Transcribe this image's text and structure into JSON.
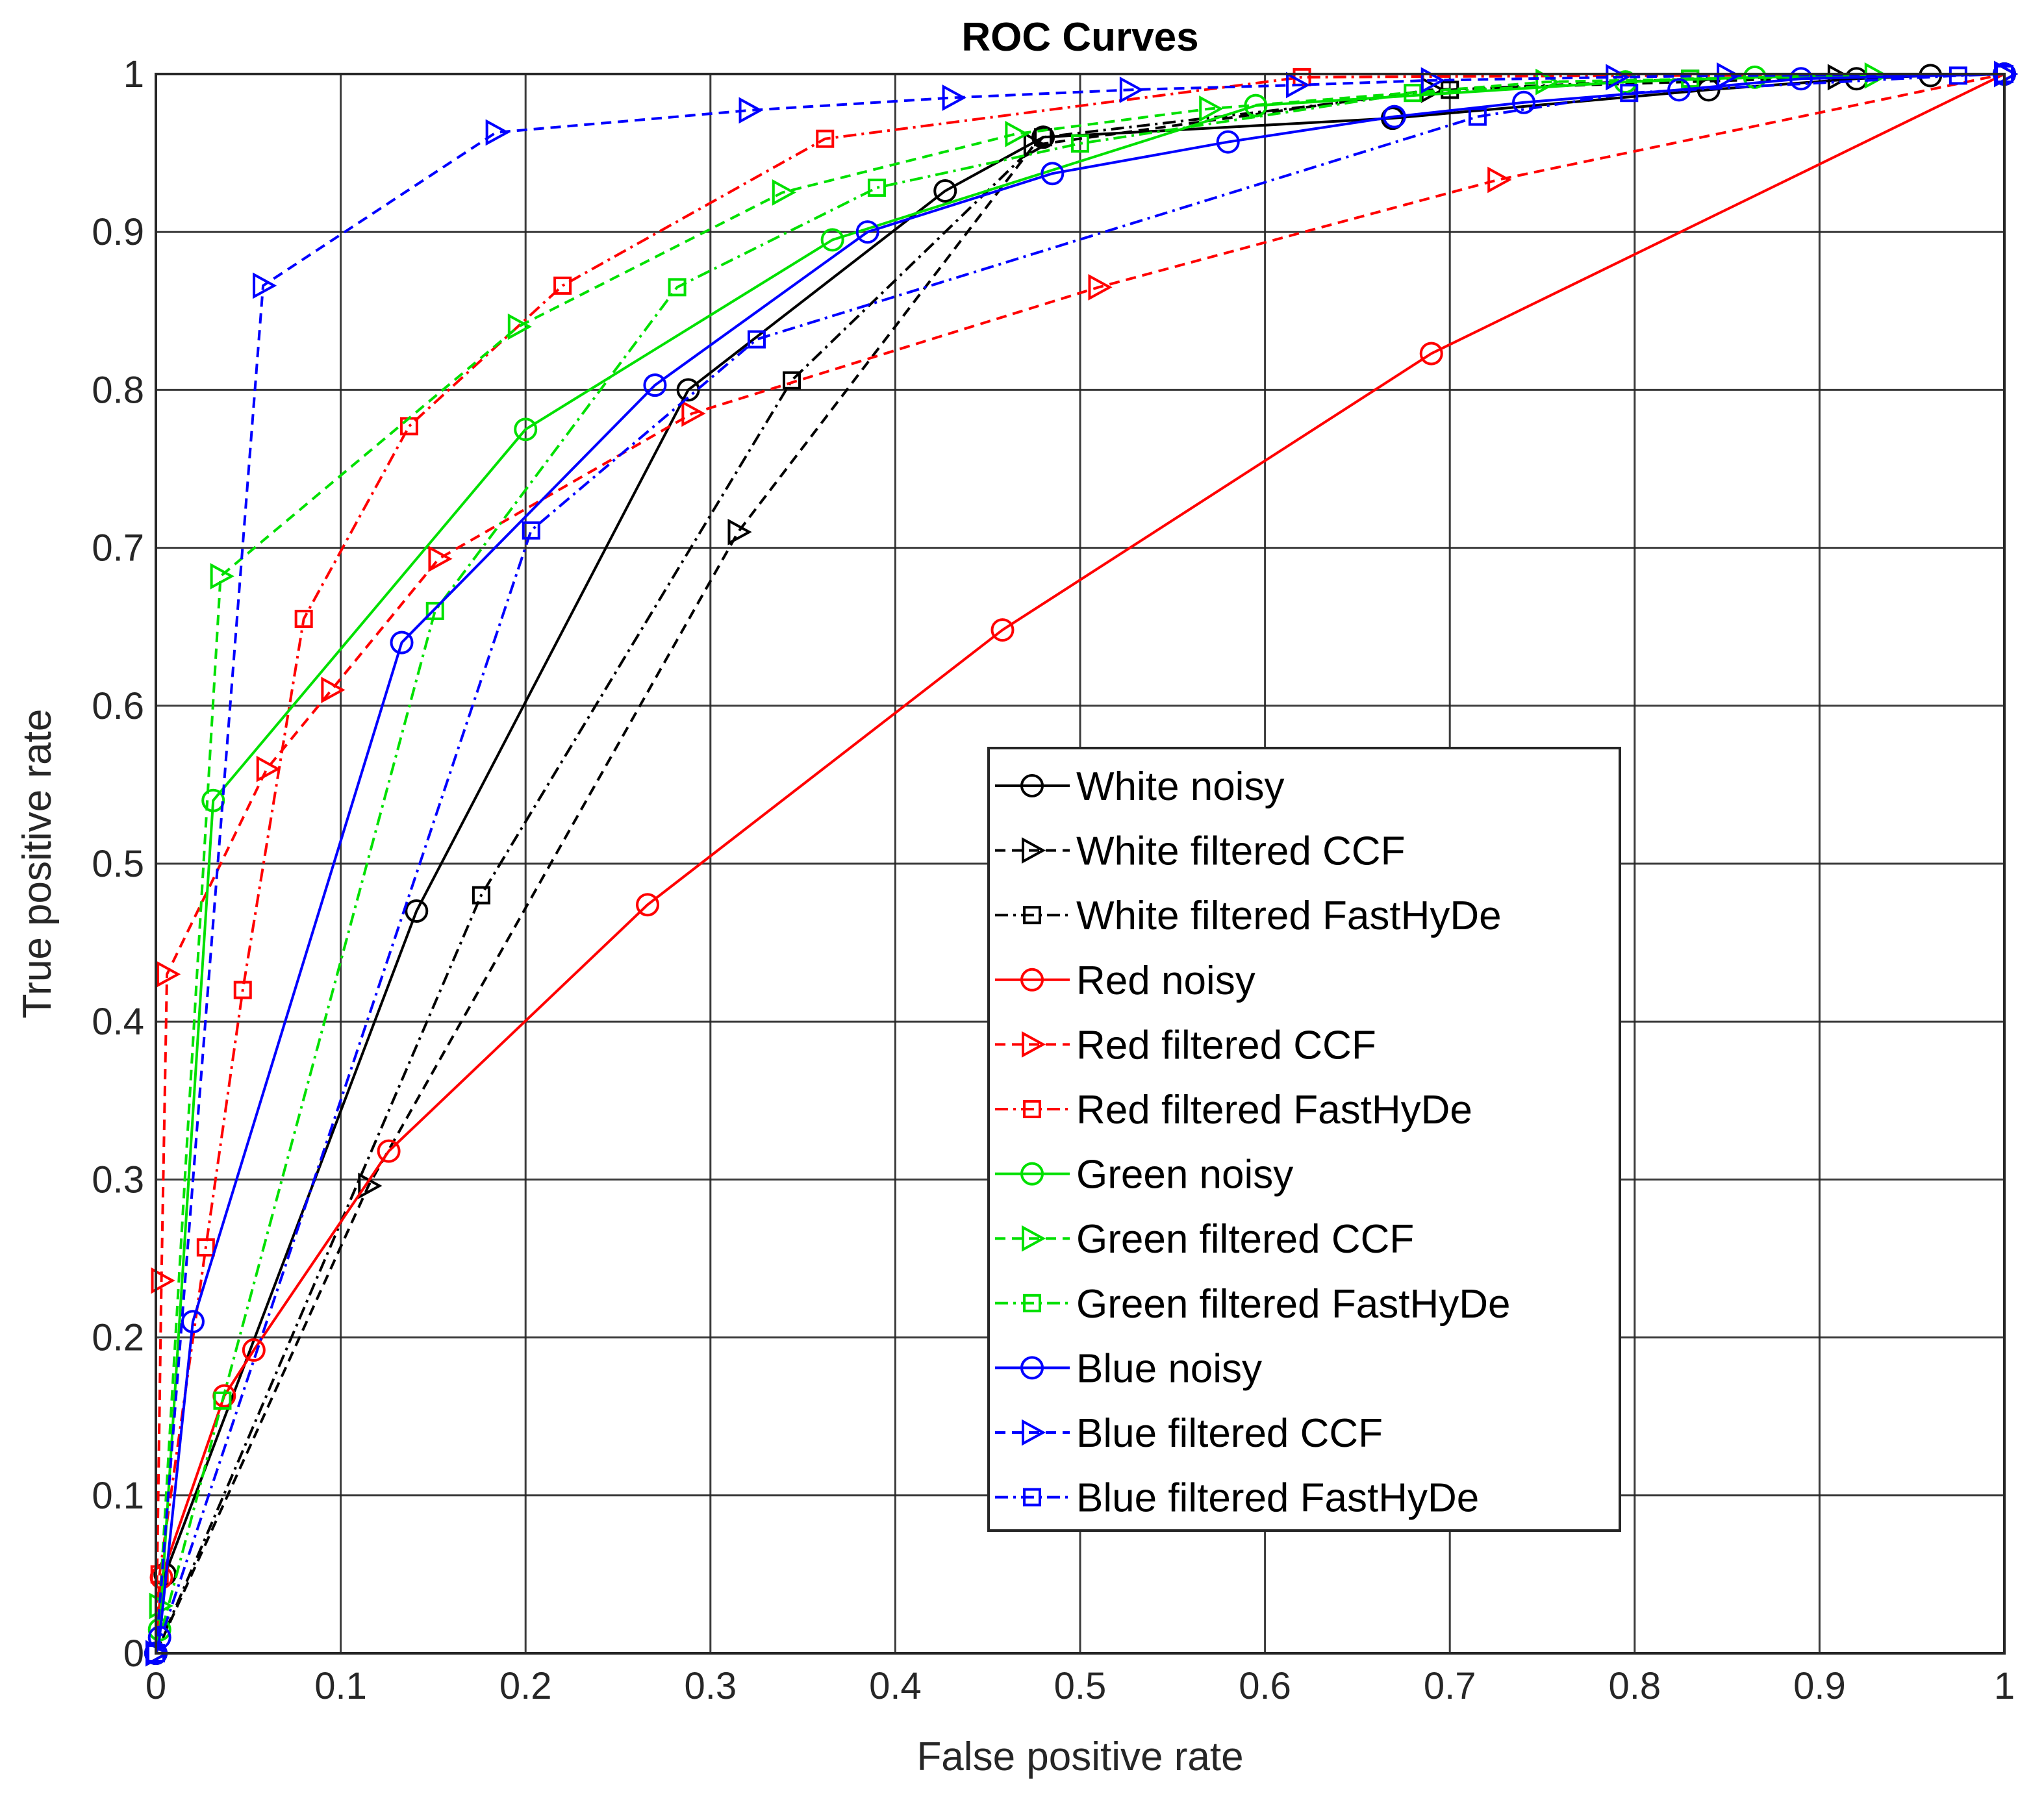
{
  "chart_data": {
    "type": "line",
    "title": "ROC Curves",
    "xlabel": "False positive rate",
    "ylabel": "True positive rate",
    "xlim": [
      0,
      1
    ],
    "ylim": [
      0,
      1
    ],
    "grid": true,
    "legend_position": "bottom-right",
    "xticks": [
      0,
      0.1,
      0.2,
      0.3,
      0.4,
      0.5,
      0.6,
      0.7,
      0.8,
      0.9,
      1
    ],
    "yticks": [
      0,
      0.1,
      0.2,
      0.3,
      0.4,
      0.5,
      0.6,
      0.7,
      0.8,
      0.9,
      1
    ],
    "xtick_labels": [
      "0",
      "0.1",
      "0.2",
      "0.3",
      "0.4",
      "0.5",
      "0.6",
      "0.7",
      "0.8",
      "0.9",
      "1"
    ],
    "ytick_labels": [
      "0",
      "0.1",
      "0.2",
      "0.3",
      "0.4",
      "0.5",
      "0.6",
      "0.7",
      "0.8",
      "0.9",
      "1"
    ],
    "series": [
      {
        "name": "White noisy",
        "color": "#000000",
        "line": "solid",
        "marker": "circle",
        "x": [
          0,
          0.005,
          0.141,
          0.288,
          0.427,
          0.48,
          0.669,
          0.84,
          0.92,
          0.96,
          1
        ],
        "y": [
          0,
          0.05,
          0.47,
          0.8,
          0.926,
          0.96,
          0.972,
          0.99,
          0.997,
          0.999,
          1
        ]
      },
      {
        "name": "White filtered CCF",
        "color": "#000000",
        "line": "dashed",
        "marker": "triangle-right",
        "x": [
          0,
          0.115,
          0.315,
          0.475,
          0.69,
          0.91,
          1
        ],
        "y": [
          0,
          0.296,
          0.71,
          0.955,
          0.99,
          0.998,
          1
        ]
      },
      {
        "name": "White filtered FastHyDe",
        "color": "#000000",
        "line": "dashdot",
        "marker": "square",
        "x": [
          0,
          0.176,
          0.344,
          0.48,
          0.7,
          0.83,
          1
        ],
        "y": [
          0,
          0.48,
          0.806,
          0.96,
          0.99,
          0.997,
          1
        ]
      },
      {
        "name": "Red noisy",
        "color": "#ff0000",
        "line": "solid",
        "marker": "circle",
        "x": [
          0,
          0.003,
          0.037,
          0.053,
          0.126,
          0.266,
          0.458,
          0.69,
          1
        ],
        "y": [
          0,
          0.048,
          0.163,
          0.192,
          0.318,
          0.474,
          0.648,
          0.823,
          1
        ]
      },
      {
        "name": "Red filtered CCF",
        "color": "#ff0000",
        "line": "dashed",
        "marker": "triangle-right",
        "x": [
          0,
          0.003,
          0.006,
          0.06,
          0.095,
          0.153,
          0.29,
          0.51,
          0.726,
          1
        ],
        "y": [
          0,
          0.236,
          0.43,
          0.56,
          0.61,
          0.693,
          0.785,
          0.865,
          0.933,
          1
        ]
      },
      {
        "name": "Red filtered FastHyDe",
        "color": "#ff0000",
        "line": "dashdot",
        "marker": "square",
        "x": [
          0,
          0.002,
          0.027,
          0.047,
          0.08,
          0.137,
          0.22,
          0.362,
          0.62,
          1
        ],
        "y": [
          0,
          0.05,
          0.257,
          0.42,
          0.655,
          0.777,
          0.866,
          0.959,
          0.998,
          1
        ]
      },
      {
        "name": "Green noisy",
        "color": "#00e000",
        "line": "solid",
        "marker": "circle",
        "x": [
          0,
          0.002,
          0.031,
          0.2,
          0.366,
          0.595,
          0.795,
          0.865,
          1
        ],
        "y": [
          0,
          0.015,
          0.54,
          0.775,
          0.895,
          0.98,
          0.995,
          0.998,
          1
        ]
      },
      {
        "name": "Green filtered CCF",
        "color": "#00e000",
        "line": "dashed",
        "marker": "triangle-right",
        "x": [
          0,
          0.002,
          0.035,
          0.196,
          0.339,
          0.465,
          0.57,
          0.752,
          0.93,
          1
        ],
        "y": [
          0,
          0.03,
          0.682,
          0.84,
          0.925,
          0.962,
          0.978,
          0.995,
          0.999,
          1
        ]
      },
      {
        "name": "Green filtered FastHyDe",
        "color": "#00e000",
        "line": "dashdot",
        "marker": "square",
        "x": [
          0,
          0.036,
          0.151,
          0.282,
          0.39,
          0.5,
          0.68,
          0.83,
          1
        ],
        "y": [
          0,
          0.16,
          0.66,
          0.865,
          0.928,
          0.956,
          0.988,
          0.997,
          1
        ]
      },
      {
        "name": "Blue noisy",
        "color": "#0000ff",
        "line": "solid",
        "marker": "circle",
        "x": [
          0,
          0.002,
          0.02,
          0.133,
          0.27,
          0.385,
          0.485,
          0.58,
          0.67,
          0.74,
          0.824,
          0.89,
          1
        ],
        "y": [
          0,
          0.01,
          0.21,
          0.64,
          0.803,
          0.9,
          0.937,
          0.957,
          0.973,
          0.982,
          0.99,
          0.997,
          1
        ]
      },
      {
        "name": "Blue filtered CCF",
        "color": "#0000ff",
        "line": "dashed",
        "marker": "triangle-right",
        "x": [
          0,
          0.058,
          0.184,
          0.321,
          0.431,
          0.527,
          0.617,
          0.69,
          0.79,
          0.85,
          1
        ],
        "y": [
          0,
          0.866,
          0.963,
          0.977,
          0.985,
          0.99,
          0.993,
          0.996,
          0.998,
          0.999,
          1
        ]
      },
      {
        "name": "Blue filtered FastHyDe",
        "color": "#0000ff",
        "line": "dashdot",
        "marker": "square",
        "x": [
          0,
          0.203,
          0.325,
          0.715,
          0.797,
          0.975,
          1
        ],
        "y": [
          0,
          0.711,
          0.832,
          0.973,
          0.988,
          0.999,
          1
        ]
      }
    ]
  }
}
